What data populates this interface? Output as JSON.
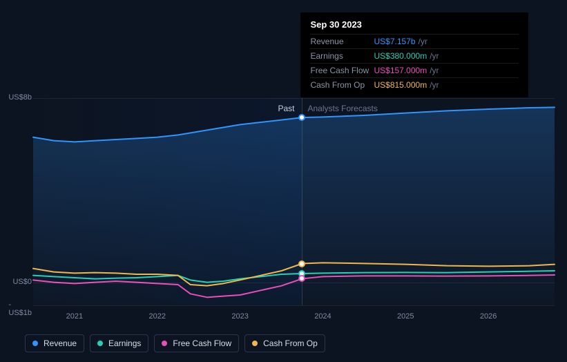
{
  "chart": {
    "type": "line",
    "background_color": "#0d1421",
    "yaxis": {
      "ticks": [
        {
          "label": "US$8b",
          "value": 8
        },
        {
          "label": "US$0",
          "value": 0
        },
        {
          "label": "-US$1b",
          "value": -1
        }
      ],
      "min": -1,
      "max": 8
    },
    "xaxis": {
      "ticks": [
        "2021",
        "2022",
        "2023",
        "2024",
        "2025",
        "2026"
      ],
      "min": 2020.5,
      "max": 2026.8
    },
    "divider_x": 2023.75,
    "regions": {
      "past_label": "Past",
      "forecast_label": "Analysts Forecasts"
    },
    "series": [
      {
        "id": "revenue",
        "name": "Revenue",
        "color": "#2f95ff",
        "area": true,
        "area_gradient_top": "rgba(47,149,255,0.25)",
        "area_gradient_bottom": "rgba(47,149,255,0.02)",
        "line_width": 2,
        "data": [
          [
            2020.5,
            6.3
          ],
          [
            2020.75,
            6.15
          ],
          [
            2021.0,
            6.1
          ],
          [
            2021.25,
            6.15
          ],
          [
            2021.5,
            6.2
          ],
          [
            2021.75,
            6.25
          ],
          [
            2022.0,
            6.3
          ],
          [
            2022.25,
            6.4
          ],
          [
            2022.5,
            6.55
          ],
          [
            2022.75,
            6.7
          ],
          [
            2023.0,
            6.85
          ],
          [
            2023.25,
            6.95
          ],
          [
            2023.5,
            7.05
          ],
          [
            2023.75,
            7.157
          ],
          [
            2024.0,
            7.18
          ],
          [
            2024.5,
            7.25
          ],
          [
            2025.0,
            7.35
          ],
          [
            2025.5,
            7.45
          ],
          [
            2026.0,
            7.52
          ],
          [
            2026.5,
            7.58
          ],
          [
            2026.8,
            7.6
          ]
        ]
      },
      {
        "id": "earnings",
        "name": "Earnings",
        "color": "#23d1b6",
        "line_width": 2,
        "data": [
          [
            2020.5,
            0.3
          ],
          [
            2020.75,
            0.25
          ],
          [
            2021.0,
            0.2
          ],
          [
            2021.25,
            0.15
          ],
          [
            2021.5,
            0.18
          ],
          [
            2021.75,
            0.2
          ],
          [
            2022.0,
            0.25
          ],
          [
            2022.25,
            0.3
          ],
          [
            2022.4,
            0.1
          ],
          [
            2022.6,
            0.0
          ],
          [
            2022.8,
            0.05
          ],
          [
            2023.0,
            0.15
          ],
          [
            2023.25,
            0.25
          ],
          [
            2023.5,
            0.35
          ],
          [
            2023.75,
            0.38
          ],
          [
            2024.0,
            0.4
          ],
          [
            2024.5,
            0.42
          ],
          [
            2025.0,
            0.43
          ],
          [
            2025.5,
            0.42
          ],
          [
            2026.0,
            0.45
          ],
          [
            2026.5,
            0.48
          ],
          [
            2026.8,
            0.5
          ]
        ]
      },
      {
        "id": "fcf",
        "name": "Free Cash Flow",
        "color": "#e84fb8",
        "line_width": 2,
        "data": [
          [
            2020.5,
            0.1
          ],
          [
            2020.75,
            0.0
          ],
          [
            2021.0,
            -0.05
          ],
          [
            2021.25,
            0.0
          ],
          [
            2021.5,
            0.05
          ],
          [
            2021.75,
            0.0
          ],
          [
            2022.0,
            -0.05
          ],
          [
            2022.25,
            -0.1
          ],
          [
            2022.4,
            -0.5
          ],
          [
            2022.6,
            -0.65
          ],
          [
            2022.8,
            -0.6
          ],
          [
            2023.0,
            -0.55
          ],
          [
            2023.25,
            -0.35
          ],
          [
            2023.5,
            -0.15
          ],
          [
            2023.75,
            0.157
          ],
          [
            2024.0,
            0.25
          ],
          [
            2024.5,
            0.28
          ],
          [
            2025.0,
            0.28
          ],
          [
            2025.5,
            0.27
          ],
          [
            2026.0,
            0.28
          ],
          [
            2026.5,
            0.3
          ],
          [
            2026.8,
            0.32
          ]
        ]
      },
      {
        "id": "cfo",
        "name": "Cash From Op",
        "color": "#f0b74a",
        "line_width": 2,
        "data": [
          [
            2020.5,
            0.6
          ],
          [
            2020.75,
            0.45
          ],
          [
            2021.0,
            0.4
          ],
          [
            2021.25,
            0.42
          ],
          [
            2021.5,
            0.4
          ],
          [
            2021.75,
            0.35
          ],
          [
            2022.0,
            0.35
          ],
          [
            2022.25,
            0.3
          ],
          [
            2022.4,
            -0.1
          ],
          [
            2022.6,
            -0.15
          ],
          [
            2022.8,
            -0.05
          ],
          [
            2023.0,
            0.1
          ],
          [
            2023.25,
            0.3
          ],
          [
            2023.5,
            0.5
          ],
          [
            2023.75,
            0.815
          ],
          [
            2024.0,
            0.85
          ],
          [
            2024.5,
            0.82
          ],
          [
            2025.0,
            0.78
          ],
          [
            2025.5,
            0.72
          ],
          [
            2026.0,
            0.7
          ],
          [
            2026.5,
            0.72
          ],
          [
            2026.8,
            0.78
          ]
        ]
      }
    ],
    "markers": [
      {
        "series": "revenue",
        "x": 2023.75,
        "y": 7.157,
        "ring": "#2f95ff"
      },
      {
        "series": "cfo",
        "x": 2023.75,
        "y": 0.815,
        "ring": "#f0b74a"
      },
      {
        "series": "earnings",
        "x": 2023.75,
        "y": 0.38,
        "ring": "#23d1b6"
      },
      {
        "series": "fcf",
        "x": 2023.75,
        "y": 0.157,
        "ring": "#e84fb8"
      }
    ]
  },
  "tooltip": {
    "date": "Sep 30 2023",
    "unit": "/yr",
    "rows": [
      {
        "label": "Revenue",
        "value": "US$7.157b",
        "color": "#2f95ff"
      },
      {
        "label": "Earnings",
        "value": "US$380.000m",
        "color": "#23d1b6"
      },
      {
        "label": "Free Cash Flow",
        "value": "US$157.000m",
        "color": "#e84fb8"
      },
      {
        "label": "Cash From Op",
        "value": "US$815.000m",
        "color": "#f0b74a"
      }
    ]
  },
  "legend": [
    {
      "label": "Revenue",
      "color": "#2f95ff"
    },
    {
      "label": "Earnings",
      "color": "#23d1b6"
    },
    {
      "label": "Free Cash Flow",
      "color": "#e84fb8"
    },
    {
      "label": "Cash From Op",
      "color": "#f0b74a"
    }
  ]
}
